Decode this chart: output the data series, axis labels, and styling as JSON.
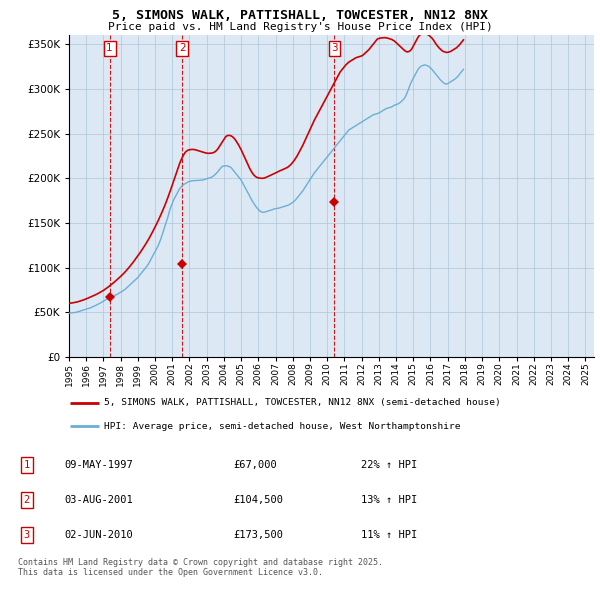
{
  "title": "5, SIMONS WALK, PATTISHALL, TOWCESTER, NN12 8NX",
  "subtitle": "Price paid vs. HM Land Registry's House Price Index (HPI)",
  "legend_property": "5, SIMONS WALK, PATTISHALL, TOWCESTER, NN12 8NX (semi-detached house)",
  "legend_hpi": "HPI: Average price, semi-detached house, West Northamptonshire",
  "transactions": [
    {
      "num": 1,
      "date": "09-MAY-1997",
      "price": 67000,
      "hpi_pct": "22% ↑ HPI",
      "year": 1997.36
    },
    {
      "num": 2,
      "date": "03-AUG-2001",
      "price": 104500,
      "hpi_pct": "13% ↑ HPI",
      "year": 2001.58
    },
    {
      "num": 3,
      "date": "02-JUN-2010",
      "price": 173500,
      "hpi_pct": "11% ↑ HPI",
      "year": 2010.42
    }
  ],
  "footer": "Contains HM Land Registry data © Crown copyright and database right 2025.\nThis data is licensed under the Open Government Licence v3.0.",
  "hpi_color": "#6baed6",
  "property_color": "#cc0000",
  "transaction_marker_color": "#cc0000",
  "chart_bg_color": "#dce9f5",
  "background_color": "#ffffff",
  "grid_color": "#aec6d8",
  "ylim": [
    0,
    360000
  ],
  "yticks": [
    0,
    50000,
    100000,
    150000,
    200000,
    250000,
    300000,
    350000
  ],
  "hpi_data_monthly": {
    "start_year": 1995,
    "start_month": 1,
    "values": [
      49000,
      49200,
      49400,
      49600,
      49800,
      50000,
      50500,
      51000,
      51500,
      52000,
      52500,
      53000,
      53500,
      54000,
      54500,
      55000,
      55800,
      56500,
      57200,
      58000,
      58800,
      59600,
      60500,
      61500,
      62500,
      63500,
      64500,
      65500,
      66500,
      67000,
      67500,
      68000,
      68800,
      69500,
      70500,
      71500,
      72500,
      73500,
      74500,
      75500,
      77000,
      78500,
      80000,
      81500,
      83000,
      84500,
      86000,
      87500,
      89000,
      91000,
      93000,
      95000,
      97000,
      99000,
      101000,
      103000,
      106000,
      109000,
      112000,
      115000,
      118000,
      121000,
      124000,
      128000,
      132000,
      137000,
      142000,
      147000,
      152000,
      157000,
      163000,
      168000,
      172000,
      176000,
      179000,
      182000,
      185000,
      188000,
      190000,
      192000,
      193000,
      194000,
      195000,
      196000,
      196500,
      197000,
      197200,
      197400,
      197500,
      197600,
      197700,
      197800,
      197800,
      198000,
      198500,
      199000,
      199500,
      200000,
      200500,
      201000,
      201800,
      203000,
      204500,
      206000,
      208000,
      210000,
      212000,
      213500,
      213800,
      214000,
      214000,
      213500,
      213000,
      212000,
      210000,
      208000,
      206000,
      204000,
      202000,
      200000,
      198000,
      195000,
      192000,
      189000,
      186000,
      183000,
      180000,
      177000,
      174000,
      171500,
      169000,
      167000,
      165000,
      163500,
      162500,
      162000,
      162000,
      162500,
      163000,
      163500,
      164000,
      164500,
      165000,
      165800,
      166000,
      166200,
      166500,
      167000,
      167500,
      168000,
      168500,
      169000,
      169500,
      170000,
      171000,
      172000,
      173000,
      174500,
      176000,
      178000,
      180000,
      182000,
      184000,
      186000,
      188500,
      191000,
      193500,
      196000,
      198500,
      201000,
      203500,
      206000,
      208000,
      210000,
      212000,
      214000,
      216000,
      218000,
      220000,
      222000,
      224000,
      226000,
      228000,
      230000,
      232000,
      234000,
      236000,
      238000,
      240000,
      242000,
      244000,
      246000,
      248000,
      250000,
      252000,
      254000,
      255000,
      256000,
      257000,
      258000,
      259000,
      260000,
      261000,
      262000,
      263000,
      264000,
      265000,
      266000,
      267000,
      268000,
      269000,
      270000,
      271000,
      271500,
      272000,
      272500,
      273000,
      274000,
      275000,
      276000,
      277000,
      278000,
      278500,
      279000,
      279500,
      280000,
      281000,
      282000,
      282500,
      283000,
      284000,
      285000,
      286500,
      288000,
      290000,
      293000,
      297000,
      301000,
      305500,
      309000,
      312000,
      315000,
      318000,
      321000,
      323500,
      325000,
      326000,
      326500,
      327000,
      326500,
      326000,
      325000,
      323500,
      322000,
      320000,
      318000,
      316000,
      314000,
      312000,
      310000,
      308500,
      307000,
      306000,
      305500,
      306000,
      307000,
      308000,
      309000,
      310000,
      311000,
      312500,
      314000,
      316000,
      318000,
      320000,
      322000
    ]
  },
  "property_data_monthly": {
    "start_year": 1995,
    "start_month": 1,
    "values": [
      60000,
      60200,
      60400,
      60700,
      61000,
      61300,
      61700,
      62200,
      62700,
      63200,
      63800,
      64400,
      65000,
      65700,
      66400,
      67100,
      67800,
      68500,
      69200,
      70000,
      70800,
      71700,
      72600,
      73500,
      74500,
      75600,
      76700,
      77900,
      79100,
      80400,
      81700,
      83000,
      84400,
      85800,
      87200,
      88700,
      90200,
      91700,
      93300,
      95000,
      96800,
      98600,
      100500,
      102500,
      104500,
      106600,
      108800,
      111000,
      113200,
      115500,
      117800,
      120200,
      122700,
      125200,
      127800,
      130400,
      133200,
      136200,
      139200,
      142300,
      145500,
      148700,
      152000,
      155500,
      159000,
      162700,
      166500,
      170400,
      174500,
      178800,
      183200,
      187800,
      192500,
      197200,
      202000,
      206800,
      211500,
      216000,
      220000,
      223500,
      226500,
      229000,
      230500,
      231500,
      232000,
      232200,
      232400,
      232200,
      232000,
      231500,
      231000,
      230500,
      230000,
      229500,
      229000,
      228500,
      228200,
      228000,
      228000,
      228200,
      228400,
      229000,
      230000,
      231500,
      233500,
      236000,
      238500,
      241000,
      243500,
      246000,
      247500,
      248000,
      248000,
      247500,
      246500,
      245000,
      243000,
      240500,
      238000,
      235000,
      232000,
      228500,
      225000,
      221500,
      218000,
      214500,
      211000,
      208000,
      205500,
      203500,
      202000,
      201000,
      200500,
      200200,
      200000,
      200000,
      200200,
      200800,
      201500,
      202200,
      203000,
      203800,
      204500,
      205200,
      206000,
      206800,
      207600,
      208400,
      209000,
      209800,
      210500,
      211200,
      212000,
      213000,
      214500,
      216000,
      218000,
      220000,
      222500,
      225000,
      228000,
      231000,
      234000,
      237000,
      240500,
      244000,
      247500,
      251000,
      254500,
      258000,
      261500,
      265000,
      268000,
      271000,
      274000,
      277000,
      280000,
      283000,
      286000,
      289000,
      292000,
      295000,
      298000,
      301000,
      304000,
      307000,
      310000,
      313000,
      316000,
      319000,
      321000,
      323000,
      325000,
      327000,
      328500,
      330000,
      331000,
      332000,
      333000,
      334000,
      335000,
      335500,
      336000,
      336500,
      337000,
      338000,
      339500,
      341000,
      342500,
      344000,
      346000,
      348000,
      350000,
      352000,
      354000,
      356000,
      356500,
      357000,
      357200,
      357500,
      357500,
      357300,
      357000,
      356500,
      356000,
      355500,
      354500,
      353500,
      352000,
      350500,
      349000,
      347500,
      346000,
      344500,
      343000,
      342000,
      341500,
      342000,
      343000,
      345000,
      348000,
      351000,
      354000,
      357000,
      359500,
      361000,
      361500,
      361800,
      362000,
      361500,
      361000,
      360000,
      358500,
      357000,
      355000,
      352500,
      350000,
      348000,
      346000,
      344500,
      343000,
      342000,
      341500,
      341000,
      341000,
      341500,
      342000,
      343000,
      344000,
      345000,
      346000,
      347500,
      349000,
      351000,
      353000,
      355000
    ]
  },
  "xlim": [
    1995.0,
    2025.5
  ],
  "xtick_years": [
    1995,
    1996,
    1997,
    1998,
    1999,
    2000,
    2001,
    2002,
    2003,
    2004,
    2005,
    2006,
    2007,
    2008,
    2009,
    2010,
    2011,
    2012,
    2013,
    2014,
    2015,
    2016,
    2017,
    2018,
    2019,
    2020,
    2021,
    2022,
    2023,
    2024,
    2025
  ]
}
